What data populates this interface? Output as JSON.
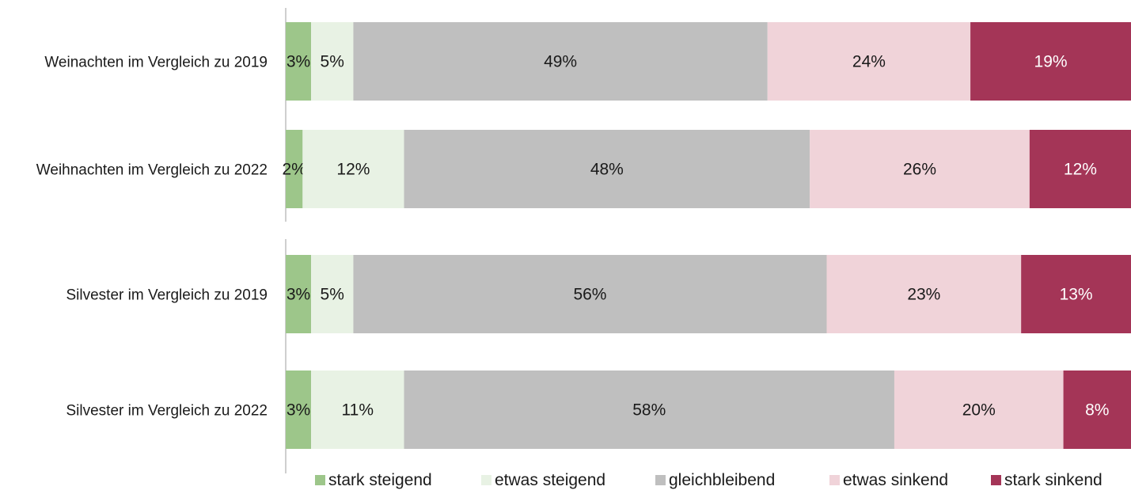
{
  "chart_data": {
    "type": "bar",
    "orientation": "horizontal",
    "stacked": true,
    "categories": [
      "Weinachten im Vergleich zu 2019",
      "Weihnachten im Vergleich zu 2022",
      "Silvester im Vergleich zu 2019",
      "Silvester im Vergleich zu 2022"
    ],
    "series": [
      {
        "name": "stark steigend",
        "values": [
          3,
          2,
          3,
          3
        ],
        "labels": [
          "3%",
          "2%",
          "3%",
          "3%"
        ],
        "color": "#9dc68a",
        "label_color": "#1a1a1a"
      },
      {
        "name": "etwas steigend",
        "values": [
          5,
          12,
          5,
          11
        ],
        "labels": [
          "5%",
          "12%",
          "5%",
          "11%"
        ],
        "color": "#e8f2e4",
        "label_color": "#1a1a1a"
      },
      {
        "name": "gleichbleibend",
        "values": [
          49,
          48,
          56,
          58
        ],
        "labels": [
          "49%",
          "48%",
          "56%",
          "58%"
        ],
        "color": "#bfbfbf",
        "label_color": "#1a1a1a"
      },
      {
        "name": "etwas sinkend",
        "values": [
          24,
          26,
          23,
          20
        ],
        "labels": [
          "24%",
          "26%",
          "23%",
          "20%"
        ],
        "color": "#f0d3d9",
        "label_color": "#1a1a1a"
      },
      {
        "name": "stark sinkend",
        "values": [
          19,
          12,
          13,
          8
        ],
        "labels": [
          "19%",
          "12%",
          "13%",
          "8%"
        ],
        "color": "#a43557",
        "label_color": "#ffffff"
      }
    ],
    "xlim": [
      0,
      100
    ],
    "grid": false,
    "legend_position": "bottom",
    "title": "",
    "xlabel": "",
    "ylabel": ""
  }
}
